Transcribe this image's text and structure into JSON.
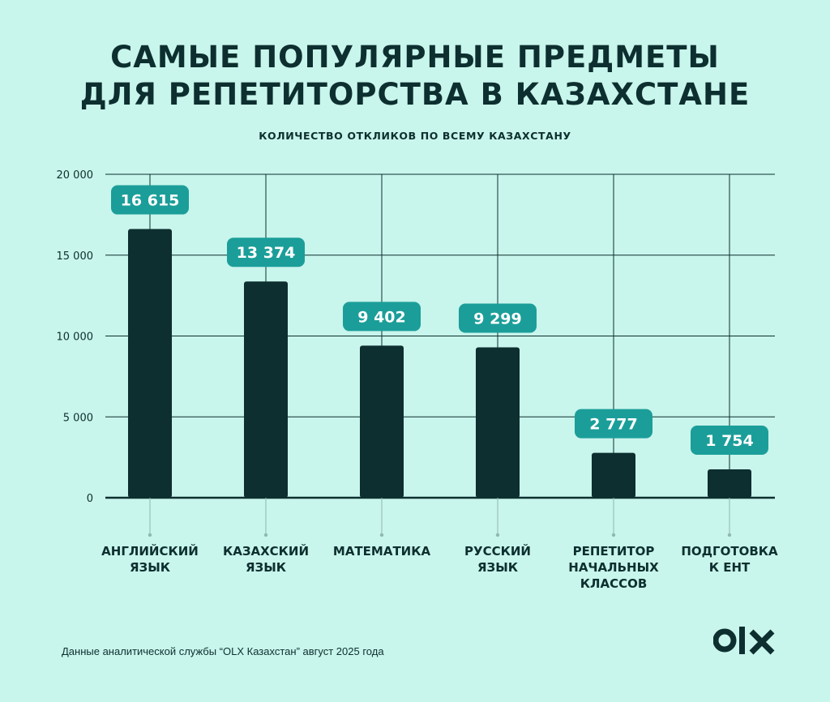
{
  "title_lines": [
    "САМЫЕ ПОПУЛЯРНЫЕ ПРЕДМЕТЫ",
    "ДЛЯ РЕПЕТИТОРСТВА В КАЗАХСТАНЕ"
  ],
  "subtitle": "КОЛИЧЕСТВО ОТКЛИКОВ ПО ВСЕМУ КАЗАХСТАНУ",
  "footnote": "Данные аналитической службы “OLX Казахстан” август 2025 года",
  "logo_text": "OLX",
  "colors": {
    "background": "#c8f5ec",
    "bar": "#0d2f2f",
    "label_box": "#1b9e99",
    "label_text": "#ffffff",
    "grid": "#0d2f2f"
  },
  "chart_data": {
    "type": "bar",
    "categories": [
      "АНГЛИЙСКИЙ\nЯЗЫК",
      "КАЗАХСКИЙ\nЯЗЫК",
      "МАТЕМАТИКА",
      "РУССКИЙ\nЯЗЫК",
      "РЕПЕТИТОР\nНАЧАЛЬНЫХ\nКЛАССОВ",
      "ПОДГОТОВКА\nК ЕНТ"
    ],
    "values": [
      16615,
      13374,
      9402,
      9299,
      2777,
      1754
    ],
    "value_labels": [
      "16 615",
      "13 374",
      "9 402",
      "9 299",
      "2 777",
      "1 754"
    ],
    "ylim": [
      0,
      20000
    ],
    "yticks": [
      0,
      5000,
      10000,
      15000,
      20000
    ],
    "ytick_labels": [
      "0",
      "5 000",
      "10 000",
      "15 000",
      "20 000"
    ],
    "grid": true
  }
}
